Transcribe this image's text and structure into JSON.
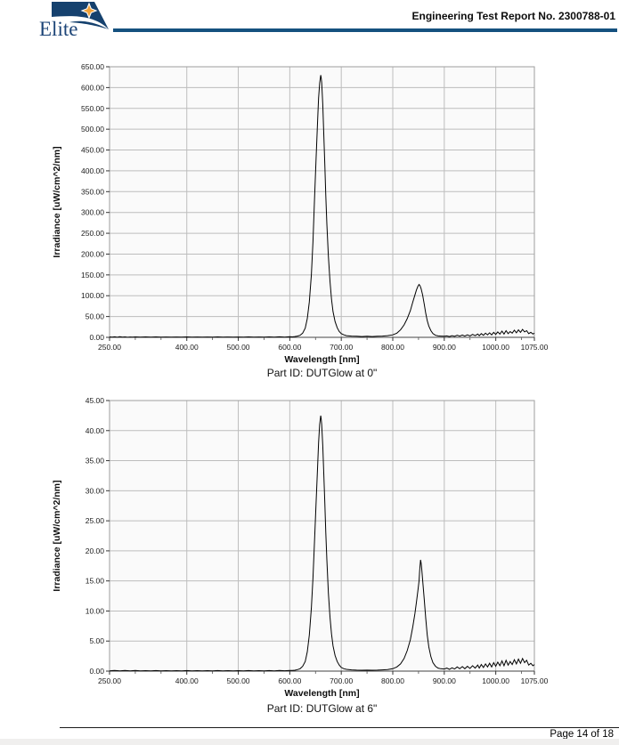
{
  "header": {
    "logo_text": "Elite",
    "report_title": "Engineering Test Report No. 2300788-01"
  },
  "footer": {
    "page_label": "Page 14 of 18"
  },
  "colors": {
    "header_rule": "#15517f",
    "logo_navy": "#15416e",
    "star_orange": "#f0a23a",
    "grid": "#bdbdbd",
    "plot_bg": "#fafafa",
    "plot_border": "#9e9e9e",
    "curve": "#000000"
  },
  "chart_data": [
    {
      "type": "line",
      "title": "Part ID: DUTGlow at 0\"",
      "xlabel": "Wavelength [nm]",
      "ylabel": "Irradiance [uW/cm^2/nm]",
      "xlim": [
        250,
        1075
      ],
      "ylim": [
        0,
        650
      ],
      "x_major_ticks": [
        250,
        400,
        500,
        600,
        700,
        800,
        900,
        1000,
        1075
      ],
      "x_tick_labels": [
        "250.00",
        "400.00",
        "500.00",
        "600.00",
        "700.00",
        "800.00",
        "900.00",
        "1000.00",
        "1075.00"
      ],
      "x_minor_step": 50,
      "y_tick_step": 50,
      "grid": true,
      "legend": "none",
      "peaks_note": "main peak ~630 uW/cm^2/nm at ~660 nm; secondary peak ~127 at ~851 nm; noise floor rising after 950 nm",
      "points": [
        [
          250,
          1
        ],
        [
          255,
          0.4
        ],
        [
          260,
          1.2
        ],
        [
          265,
          0.3
        ],
        [
          270,
          1.5
        ],
        [
          275,
          0.5
        ],
        [
          280,
          1
        ],
        [
          285,
          0.3
        ],
        [
          290,
          0.8
        ],
        [
          295,
          0.4
        ],
        [
          300,
          1
        ],
        [
          310,
          0.5
        ],
        [
          320,
          1
        ],
        [
          330,
          0.6
        ],
        [
          340,
          1
        ],
        [
          350,
          0.5
        ],
        [
          360,
          0.9
        ],
        [
          370,
          0.4
        ],
        [
          380,
          0.8
        ],
        [
          390,
          0.5
        ],
        [
          400,
          1
        ],
        [
          410,
          0.5
        ],
        [
          420,
          0.9
        ],
        [
          430,
          0.4
        ],
        [
          440,
          0.8
        ],
        [
          450,
          0.5
        ],
        [
          460,
          1
        ],
        [
          470,
          0.5
        ],
        [
          480,
          0.9
        ],
        [
          490,
          0.4
        ],
        [
          500,
          0.8
        ],
        [
          510,
          0.5
        ],
        [
          520,
          1
        ],
        [
          530,
          0.5
        ],
        [
          540,
          0.9
        ],
        [
          550,
          0.5
        ],
        [
          560,
          1
        ],
        [
          570,
          0.5
        ],
        [
          580,
          1.2
        ],
        [
          590,
          0.6
        ],
        [
          600,
          1.5
        ],
        [
          605,
          1
        ],
        [
          610,
          2
        ],
        [
          615,
          3
        ],
        [
          620,
          5
        ],
        [
          625,
          10
        ],
        [
          630,
          22
        ],
        [
          634,
          45
        ],
        [
          638,
          85
        ],
        [
          642,
          150
        ],
        [
          645,
          230
        ],
        [
          648,
          330
        ],
        [
          651,
          430
        ],
        [
          654,
          520
        ],
        [
          656,
          575
        ],
        [
          658,
          610
        ],
        [
          660,
          630
        ],
        [
          661,
          624
        ],
        [
          662,
          612
        ],
        [
          664,
          560
        ],
        [
          666,
          490
        ],
        [
          668,
          415
        ],
        [
          670,
          340
        ],
        [
          672,
          272
        ],
        [
          675,
          195
        ],
        [
          678,
          135
        ],
        [
          681,
          92
        ],
        [
          684,
          62
        ],
        [
          688,
          38
        ],
        [
          692,
          23
        ],
        [
          696,
          14
        ],
        [
          700,
          9
        ],
        [
          705,
          6
        ],
        [
          710,
          4
        ],
        [
          720,
          3
        ],
        [
          730,
          2.5
        ],
        [
          740,
          2
        ],
        [
          750,
          2.5
        ],
        [
          760,
          2
        ],
        [
          770,
          2.5
        ],
        [
          780,
          3
        ],
        [
          790,
          4
        ],
        [
          800,
          6
        ],
        [
          808,
          10
        ],
        [
          815,
          18
        ],
        [
          822,
          30
        ],
        [
          828,
          45
        ],
        [
          834,
          64
        ],
        [
          839,
          85
        ],
        [
          843,
          102
        ],
        [
          846,
          114
        ],
        [
          849,
          123
        ],
        [
          851,
          127
        ],
        [
          853,
          124
        ],
        [
          855,
          117
        ],
        [
          858,
          102
        ],
        [
          861,
          80
        ],
        [
          864,
          58
        ],
        [
          867,
          40
        ],
        [
          870,
          27
        ],
        [
          874,
          16
        ],
        [
          878,
          9
        ],
        [
          883,
          5
        ],
        [
          888,
          3.5
        ],
        [
          893,
          3
        ],
        [
          900,
          2.5
        ],
        [
          905,
          3.5
        ],
        [
          910,
          2
        ],
        [
          915,
          4
        ],
        [
          920,
          2.5
        ],
        [
          925,
          5
        ],
        [
          930,
          3
        ],
        [
          935,
          5.5
        ],
        [
          940,
          3
        ],
        [
          945,
          6
        ],
        [
          950,
          3.5
        ],
        [
          955,
          7
        ],
        [
          960,
          4
        ],
        [
          965,
          8
        ],
        [
          968,
          4
        ],
        [
          972,
          9
        ],
        [
          976,
          5
        ],
        [
          980,
          10
        ],
        [
          984,
          6
        ],
        [
          988,
          11
        ],
        [
          992,
          6
        ],
        [
          996,
          12
        ],
        [
          1000,
          7
        ],
        [
          1004,
          13
        ],
        [
          1008,
          8
        ],
        [
          1012,
          15
        ],
        [
          1016,
          8
        ],
        [
          1020,
          16
        ],
        [
          1024,
          9
        ],
        [
          1028,
          14
        ],
        [
          1032,
          10
        ],
        [
          1036,
          17
        ],
        [
          1040,
          11
        ],
        [
          1044,
          18
        ],
        [
          1048,
          12
        ],
        [
          1052,
          19
        ],
        [
          1056,
          13
        ],
        [
          1060,
          16
        ],
        [
          1064,
          9
        ],
        [
          1068,
          12
        ],
        [
          1072,
          8
        ],
        [
          1075,
          10
        ]
      ]
    },
    {
      "type": "line",
      "title": "Part ID: DUTGlow at 6\"",
      "xlabel": "Wavelength [nm]",
      "ylabel": "Irradiance [uW/cm^2/nm]",
      "xlim": [
        250,
        1075
      ],
      "ylim": [
        0,
        45
      ],
      "x_major_ticks": [
        250,
        400,
        500,
        600,
        700,
        800,
        900,
        1000,
        1075
      ],
      "x_tick_labels": [
        "250.00",
        "400.00",
        "500.00",
        "600.00",
        "700.00",
        "800.00",
        "900.00",
        "1000.00",
        "1075.00"
      ],
      "x_minor_step": 50,
      "y_tick_step": 5,
      "grid": true,
      "legend": "none",
      "peaks_note": "main peak ~42.5 uW/cm^2/nm at ~660 nm; secondary peak ~18.5 at ~854 nm; noise floor rising after 950 nm",
      "points": [
        [
          250,
          0.05
        ],
        [
          260,
          0.12
        ],
        [
          270,
          0.05
        ],
        [
          280,
          0.1
        ],
        [
          290,
          0.05
        ],
        [
          300,
          0.1
        ],
        [
          310,
          0.05
        ],
        [
          320,
          0.08
        ],
        [
          330,
          0.05
        ],
        [
          340,
          0.09
        ],
        [
          350,
          0.05
        ],
        [
          360,
          0.08
        ],
        [
          370,
          0.04
        ],
        [
          380,
          0.08
        ],
        [
          390,
          0.05
        ],
        [
          400,
          0.09
        ],
        [
          410,
          0.05
        ],
        [
          420,
          0.08
        ],
        [
          430,
          0.04
        ],
        [
          440,
          0.08
        ],
        [
          450,
          0.05
        ],
        [
          460,
          0.09
        ],
        [
          470,
          0.05
        ],
        [
          480,
          0.08
        ],
        [
          490,
          0.04
        ],
        [
          500,
          0.08
        ],
        [
          510,
          0.05
        ],
        [
          520,
          0.09
        ],
        [
          530,
          0.05
        ],
        [
          540,
          0.08
        ],
        [
          550,
          0.05
        ],
        [
          560,
          0.09
        ],
        [
          570,
          0.05
        ],
        [
          580,
          0.1
        ],
        [
          590,
          0.06
        ],
        [
          600,
          0.12
        ],
        [
          605,
          0.1
        ],
        [
          610,
          0.15
        ],
        [
          615,
          0.25
        ],
        [
          620,
          0.4
        ],
        [
          625,
          0.8
        ],
        [
          630,
          1.6
        ],
        [
          634,
          3.2
        ],
        [
          638,
          6
        ],
        [
          642,
          10.5
        ],
        [
          645,
          15.5
        ],
        [
          648,
          21.5
        ],
        [
          651,
          28
        ],
        [
          654,
          34
        ],
        [
          656,
          38
        ],
        [
          658,
          41
        ],
        [
          660,
          42.5
        ],
        [
          661,
          42
        ],
        [
          662,
          41
        ],
        [
          664,
          37.5
        ],
        [
          666,
          33
        ],
        [
          668,
          28
        ],
        [
          670,
          23
        ],
        [
          672,
          18.5
        ],
        [
          675,
          13
        ],
        [
          678,
          9
        ],
        [
          681,
          6.2
        ],
        [
          684,
          4.2
        ],
        [
          688,
          2.6
        ],
        [
          692,
          1.6
        ],
        [
          696,
          1
        ],
        [
          700,
          0.6
        ],
        [
          705,
          0.4
        ],
        [
          710,
          0.3
        ],
        [
          720,
          0.2
        ],
        [
          730,
          0.17
        ],
        [
          740,
          0.15
        ],
        [
          750,
          0.17
        ],
        [
          760,
          0.15
        ],
        [
          770,
          0.17
        ],
        [
          780,
          0.2
        ],
        [
          790,
          0.27
        ],
        [
          800,
          0.4
        ],
        [
          808,
          0.7
        ],
        [
          815,
          1.2
        ],
        [
          822,
          2.1
        ],
        [
          828,
          3.4
        ],
        [
          834,
          5.2
        ],
        [
          839,
          7.4
        ],
        [
          843,
          9.6
        ],
        [
          846,
          11.5
        ],
        [
          849,
          13.5
        ],
        [
          851,
          15
        ],
        [
          852,
          16.5
        ],
        [
          853,
          17.5
        ],
        [
          854,
          18.5
        ],
        [
          855,
          18
        ],
        [
          856,
          17.2
        ],
        [
          858,
          15.2
        ],
        [
          861,
          12
        ],
        [
          864,
          8.8
        ],
        [
          867,
          6
        ],
        [
          870,
          4
        ],
        [
          874,
          2.4
        ],
        [
          878,
          1.4
        ],
        [
          883,
          0.8
        ],
        [
          888,
          0.5
        ],
        [
          893,
          0.4
        ],
        [
          900,
          0.35
        ],
        [
          905,
          0.5
        ],
        [
          910,
          0.3
        ],
        [
          915,
          0.55
        ],
        [
          920,
          0.35
        ],
        [
          925,
          0.7
        ],
        [
          930,
          0.4
        ],
        [
          935,
          0.75
        ],
        [
          940,
          0.4
        ],
        [
          945,
          0.8
        ],
        [
          950,
          0.45
        ],
        [
          955,
          0.9
        ],
        [
          960,
          0.5
        ],
        [
          965,
          1
        ],
        [
          968,
          0.5
        ],
        [
          972,
          1.1
        ],
        [
          976,
          0.6
        ],
        [
          980,
          1.2
        ],
        [
          984,
          0.7
        ],
        [
          988,
          1.3
        ],
        [
          992,
          0.7
        ],
        [
          996,
          1.4
        ],
        [
          1000,
          0.8
        ],
        [
          1004,
          1.5
        ],
        [
          1008,
          0.9
        ],
        [
          1012,
          1.7
        ],
        [
          1016,
          0.9
        ],
        [
          1020,
          1.8
        ],
        [
          1024,
          1
        ],
        [
          1028,
          1.6
        ],
        [
          1032,
          1.1
        ],
        [
          1036,
          1.9
        ],
        [
          1040,
          1.2
        ],
        [
          1044,
          2
        ],
        [
          1048,
          1.3
        ],
        [
          1052,
          2.1
        ],
        [
          1056,
          1.4
        ],
        [
          1060,
          1.8
        ],
        [
          1064,
          1
        ],
        [
          1068,
          1.3
        ],
        [
          1072,
          0.9
        ],
        [
          1075,
          1.1
        ]
      ]
    }
  ]
}
